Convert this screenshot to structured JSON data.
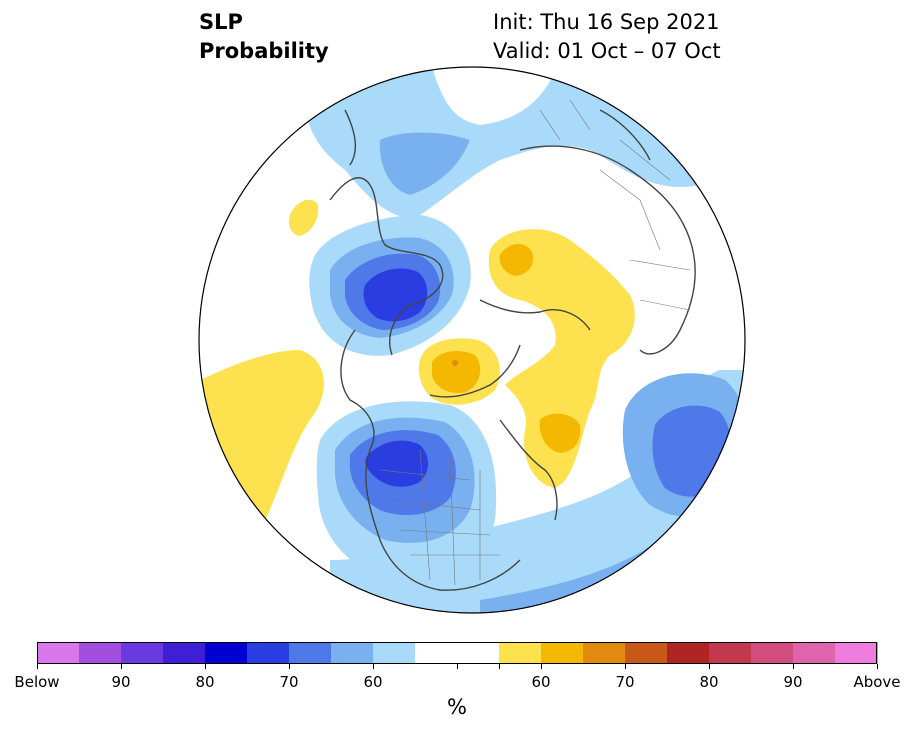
{
  "header": {
    "title_line1": "SLP",
    "title_line2": "Probability",
    "init": "Init: Thu 16 Sep 2021",
    "valid": "Valid: 01 Oct – 07 Oct"
  },
  "colorbar": {
    "colors": [
      "#d977ec",
      "#a24fdf",
      "#6a3ae0",
      "#3f1fd6",
      "#0000d2",
      "#2a3de0",
      "#4f78e8",
      "#79b1f0",
      "#aadafa",
      "#ffffff",
      "#ffffff",
      "#fee14f",
      "#f4b803",
      "#e08a0e",
      "#c85817",
      "#b02523",
      "#c2384e",
      "#d04d7d",
      "#dd64ad",
      "#ee7ddd"
    ],
    "tick_labels": [
      "Below",
      "90",
      "80",
      "70",
      "60",
      "60",
      "70",
      "80",
      "90",
      "Above"
    ],
    "unit": "%"
  },
  "map": {
    "projection": "north-polar-stereographic",
    "legend_colors": {
      "below_light": "#aadafa",
      "below_mid": "#79b1f0",
      "below_strong": "#4f78e8",
      "below_stronger": "#2a3de0",
      "above_light": "#fee14f",
      "above_mid": "#f4b803",
      "above_strong": "#e08a0e"
    }
  }
}
